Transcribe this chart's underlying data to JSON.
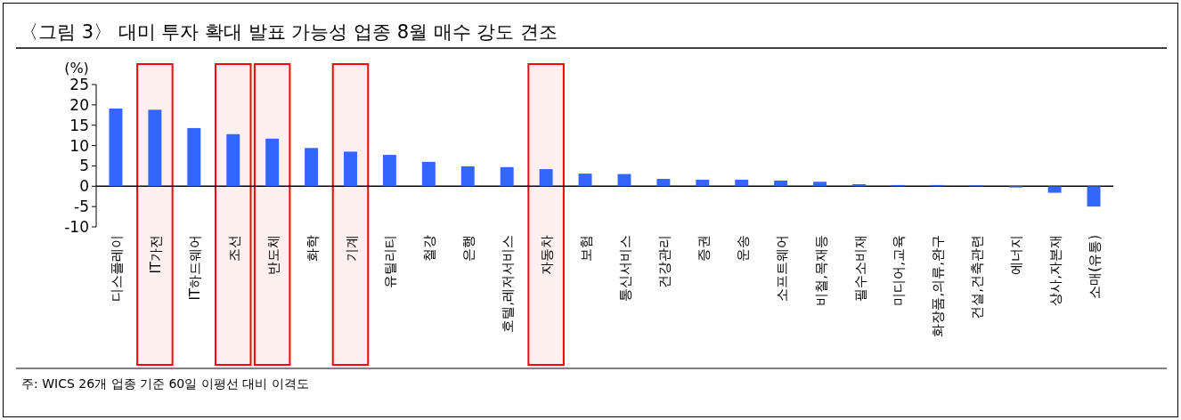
{
  "chart_data": {
    "type": "bar",
    "title": "〈그림 3〉 대미 투자 확대 발표 가능성 업종 8월 매수 강도 견조",
    "ylabel": "(%)",
    "categories": [
      "디스플레이",
      "IT가전",
      "IT하드웨어",
      "조선",
      "반도체",
      "화학",
      "기계",
      "유틸리티",
      "철강",
      "은행",
      "호텔,레저서비스",
      "자동차",
      "보험",
      "통신서비스",
      "건강관리",
      "증권",
      "운송",
      "소프트웨어",
      "비철,목재등",
      "필수소비재",
      "미디어,교육",
      "화장품,의류,완구",
      "건설,건축관련",
      "에너지",
      "상사,자본재",
      "소매(유통)"
    ],
    "values": [
      19.1,
      18.8,
      14.3,
      12.8,
      11.7,
      9.4,
      8.5,
      7.7,
      6.0,
      4.9,
      4.7,
      4.2,
      3.1,
      3.0,
      1.8,
      1.6,
      1.6,
      1.4,
      1.1,
      0.5,
      0.3,
      0.3,
      0.2,
      -0.3,
      -1.6,
      -5.0
    ],
    "color": "#3366ff",
    "ylim": [
      -10,
      25
    ],
    "yticks": [
      -10,
      -5,
      0,
      5,
      10,
      15,
      20,
      25
    ],
    "bands": [
      {
        "axis": "x",
        "from": "IT가전",
        "to": "IT가전",
        "color": "#ff0000"
      },
      {
        "axis": "x",
        "from": "조선",
        "to": "조선",
        "color": "#ff0000"
      },
      {
        "axis": "x",
        "from": "반도체",
        "to": "반도체",
        "color": "#ff0000"
      },
      {
        "axis": "x",
        "from": "기계",
        "to": "기계",
        "color": "#ff0000"
      },
      {
        "axis": "x",
        "from": "자동차",
        "to": "자동차",
        "color": "#ff0000"
      }
    ],
    "annotations": [
      "주: WICS 26개 업종 기준 60일 이평선 대비 이격도"
    ]
  }
}
